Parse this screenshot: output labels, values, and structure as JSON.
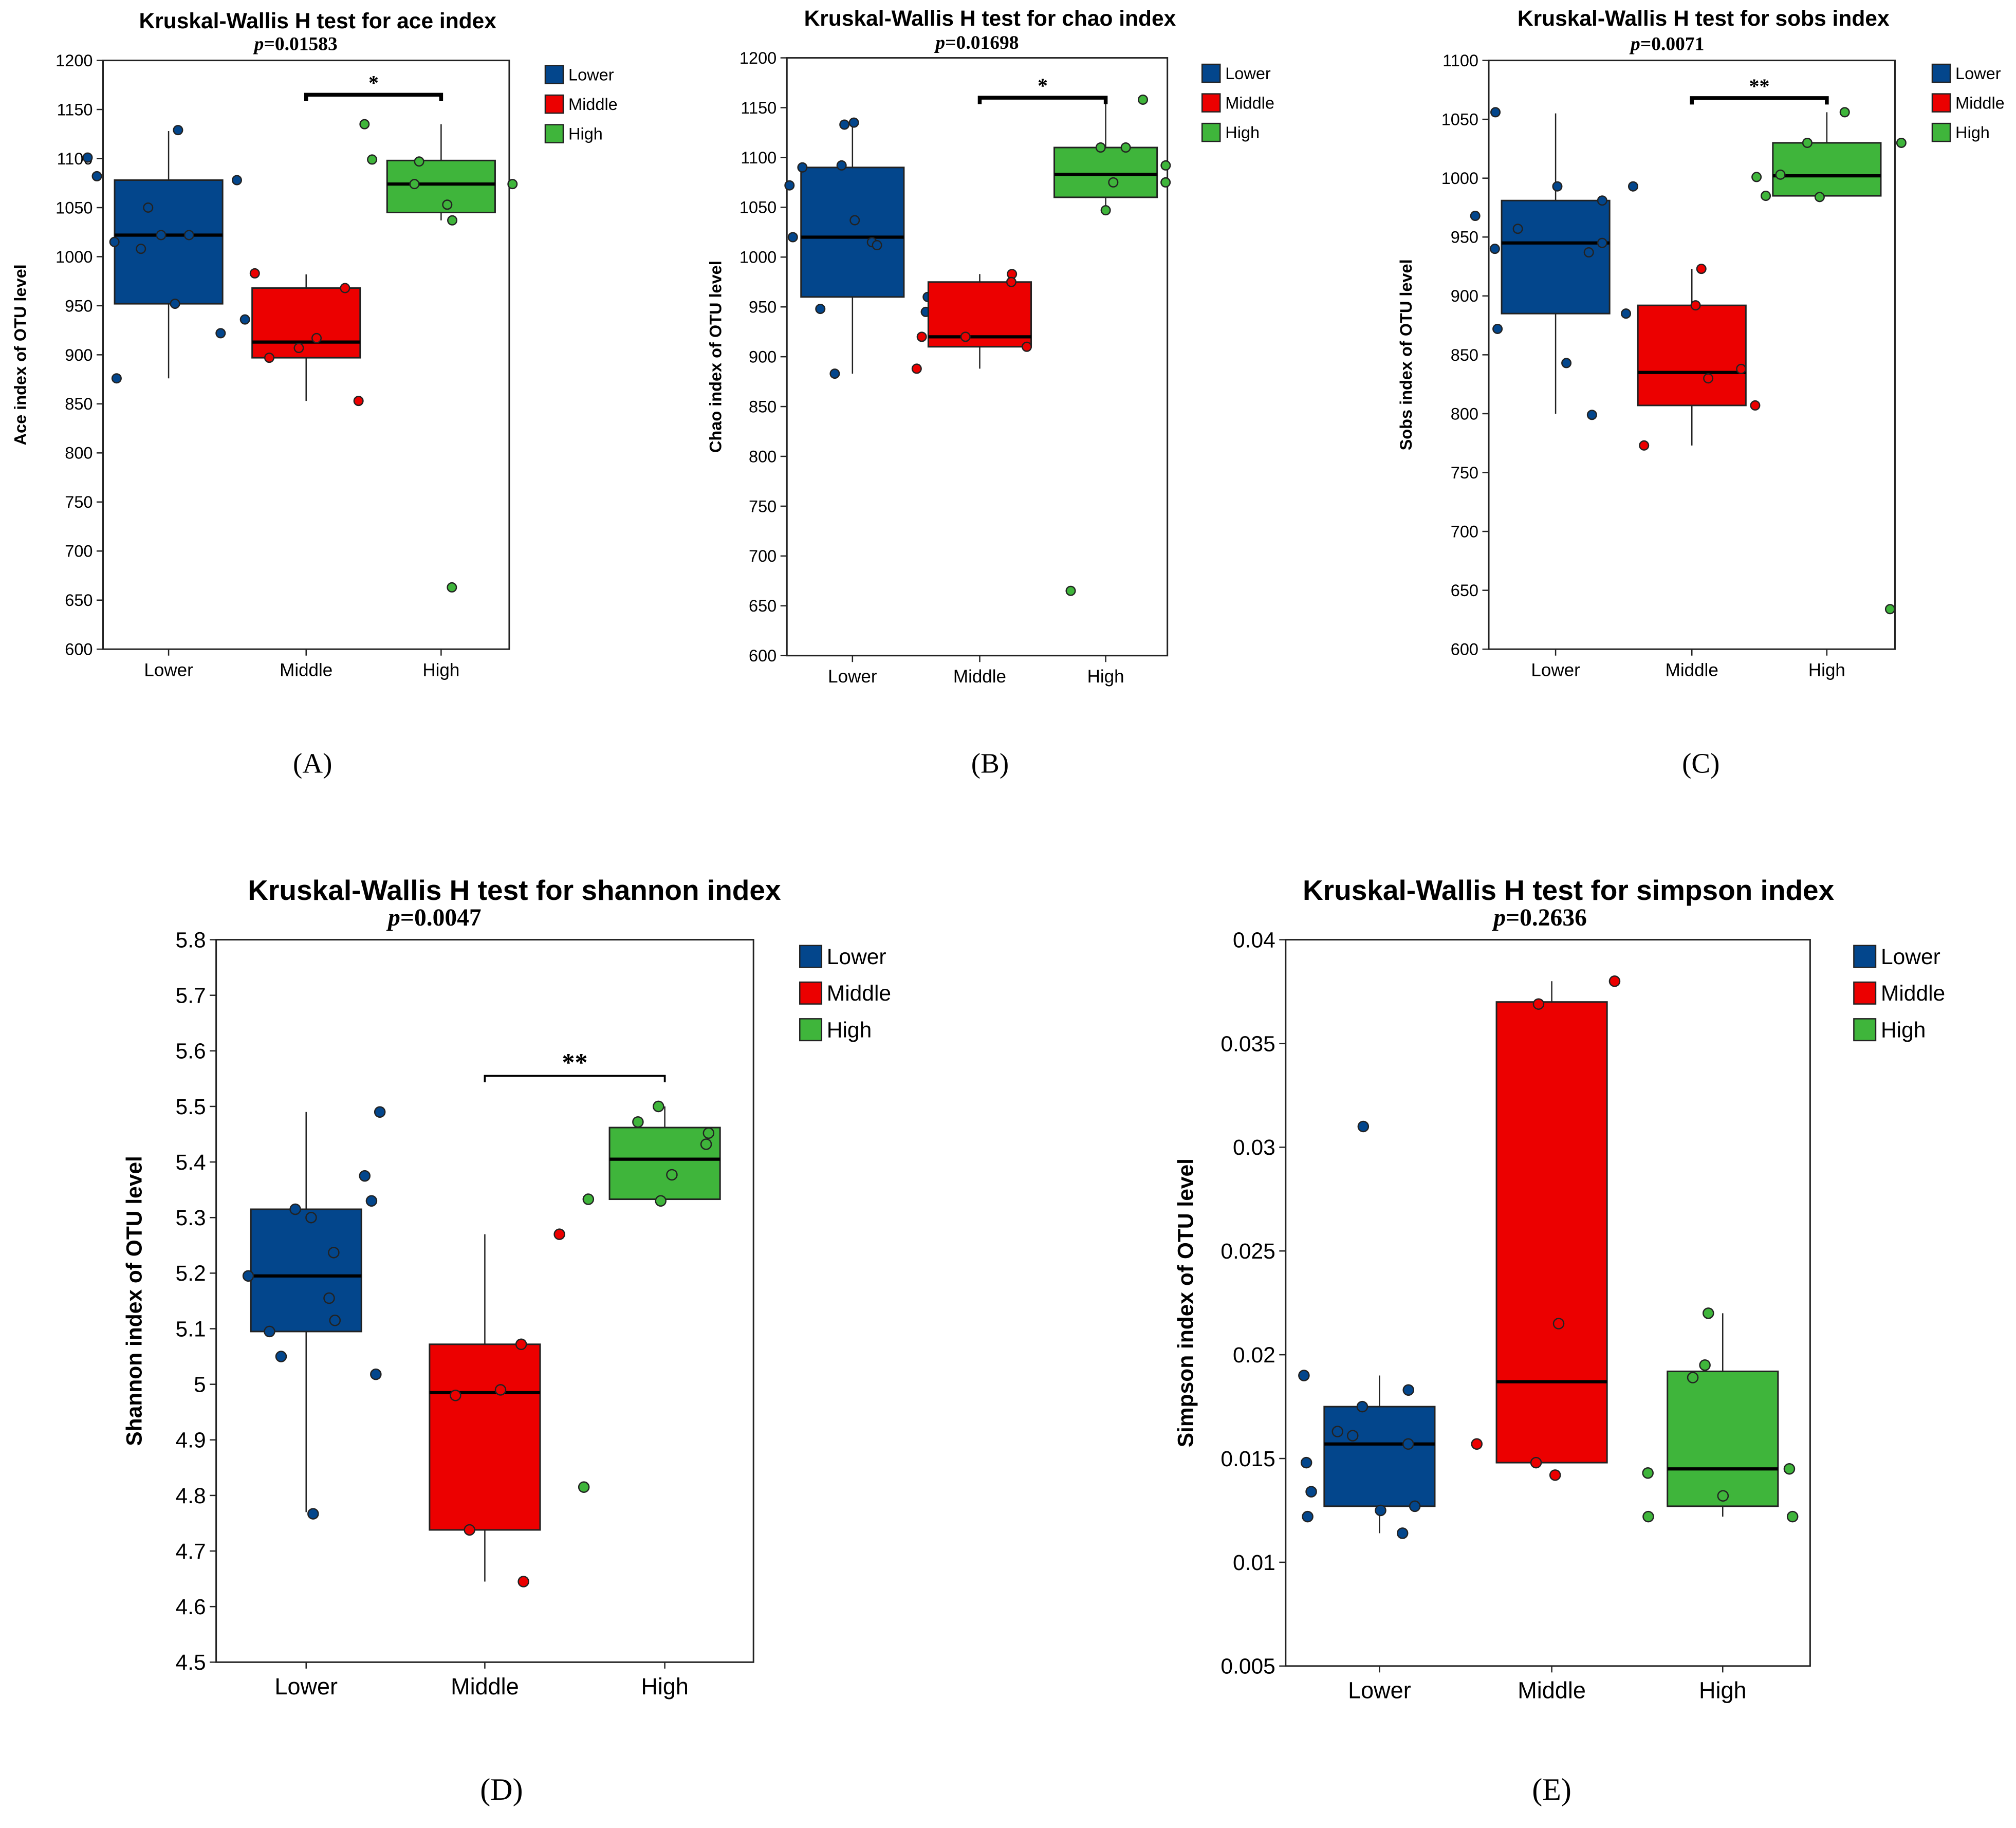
{
  "colors": {
    "Lower": "#03468c",
    "Middle": "#ec0000",
    "High": "#3fb53b"
  },
  "legend": [
    "Lower",
    "Middle",
    "High"
  ],
  "chart_data": [
    {
      "id": "A",
      "type": "box",
      "panel_label": "(A)",
      "title": "Kruskal-Wallis H test for ace index",
      "p_label": "p",
      "p_value": "=0.01583",
      "ylabel": "Ace index of OTU level",
      "ylim": [
        600,
        1200
      ],
      "yticks": [
        600,
        650,
        700,
        750,
        800,
        850,
        900,
        950,
        1000,
        1050,
        1100,
        1150,
        1200
      ],
      "categories": [
        "Lower",
        "Middle",
        "High"
      ],
      "groups": [
        {
          "name": "Lower",
          "q1": 952,
          "median": 1022,
          "q3": 1078,
          "whisker_low": 876,
          "whisker_high": 1128,
          "points": [
            1101,
            1078,
            1082,
            1129,
            1050,
            1022,
            1022,
            1015,
            1008,
            952,
            936,
            922,
            876
          ]
        },
        {
          "name": "Middle",
          "q1": 897,
          "median": 913,
          "q3": 968,
          "whisker_low": 853,
          "whisker_high": 982,
          "points": [
            983,
            968,
            917,
            907,
            897,
            853
          ]
        },
        {
          "name": "High",
          "q1": 1045,
          "median": 1074,
          "q3": 1098,
          "whisker_low": 1037,
          "whisker_high": 1135,
          "points": [
            1135,
            1099,
            1097,
            1074,
            1074,
            1053,
            1037,
            663
          ]
        }
      ],
      "significance": {
        "from": "Middle",
        "to": "High",
        "y": 1165,
        "label": "*"
      }
    },
    {
      "id": "B",
      "type": "box",
      "panel_label": "(B)",
      "title": "Kruskal-Wallis H test for chao index",
      "p_label": "p",
      "p_value": "=0.01698",
      "ylabel": "Chao index of OTU level",
      "ylim": [
        600,
        1200
      ],
      "yticks": [
        600,
        650,
        700,
        750,
        800,
        850,
        900,
        950,
        1000,
        1050,
        1100,
        1150,
        1200
      ],
      "categories": [
        "Lower",
        "Middle",
        "High"
      ],
      "groups": [
        {
          "name": "Lower",
          "q1": 960,
          "median": 1020,
          "q3": 1090,
          "whisker_low": 883,
          "whisker_high": 1135,
          "points": [
            1135,
            1133,
            1092,
            1090,
            1072,
            1037,
            1020,
            1015,
            1012,
            960,
            948,
            945,
            883
          ]
        },
        {
          "name": "Middle",
          "q1": 910,
          "median": 920,
          "q3": 975,
          "whisker_low": 888,
          "whisker_high": 983,
          "points": [
            983,
            975,
            920,
            920,
            910,
            888
          ]
        },
        {
          "name": "High",
          "q1": 1060,
          "median": 1083,
          "q3": 1110,
          "whisker_low": 1047,
          "whisker_high": 1158,
          "points": [
            1158,
            1110,
            1110,
            1092,
            1075,
            1075,
            1047,
            665
          ]
        }
      ],
      "significance": {
        "from": "Middle",
        "to": "High",
        "y": 1160,
        "label": "*"
      }
    },
    {
      "id": "C",
      "type": "box",
      "panel_label": "(C)",
      "title": "Kruskal-Wallis H test for sobs index",
      "p_label": "p",
      "p_value": "=0.0071",
      "ylabel": "Sobs index of OTU level",
      "ylim": [
        600,
        1100
      ],
      "yticks": [
        600,
        650,
        700,
        750,
        800,
        850,
        900,
        950,
        1000,
        1050,
        1100
      ],
      "categories": [
        "Lower",
        "Middle",
        "High"
      ],
      "groups": [
        {
          "name": "Lower",
          "q1": 885,
          "median": 945,
          "q3": 981,
          "whisker_low": 800,
          "whisker_high": 1055,
          "points": [
            1056,
            993,
            993,
            981,
            968,
            957,
            945,
            940,
            937,
            885,
            872,
            843,
            799
          ]
        },
        {
          "name": "Middle",
          "q1": 807,
          "median": 835,
          "q3": 892,
          "whisker_low": 773,
          "whisker_high": 923,
          "points": [
            923,
            892,
            838,
            830,
            807,
            773
          ]
        },
        {
          "name": "High",
          "q1": 985,
          "median": 1002,
          "q3": 1030,
          "whisker_low": 985,
          "whisker_high": 1056,
          "points": [
            1056,
            1030,
            1030,
            1003,
            1001,
            985,
            984,
            634
          ]
        }
      ],
      "significance": {
        "from": "Middle",
        "to": "High",
        "y": 1068,
        "label": "**"
      }
    },
    {
      "id": "D",
      "type": "box",
      "panel_label": "(D)",
      "title": "Kruskal-Wallis H test for shannon index",
      "p_label": "p",
      "p_value": "=0.0047",
      "ylabel": "Shannon index of OTU level",
      "ylim": [
        4.5,
        5.8
      ],
      "yticks": [
        "4.5",
        "4.6",
        "4.7",
        "4.8",
        "4.9",
        "5",
        "5.1",
        "5.2",
        "5.3",
        "5.4",
        "5.5",
        "5.6",
        "5.7",
        "5.8"
      ],
      "categories": [
        "Lower",
        "Middle",
        "High"
      ],
      "groups": [
        {
          "name": "Lower",
          "q1": 5.095,
          "median": 5.195,
          "q3": 5.315,
          "whisker_low": 4.77,
          "whisker_high": 5.49,
          "points": [
            5.49,
            5.375,
            5.33,
            5.315,
            5.3,
            5.237,
            5.195,
            5.155,
            5.115,
            5.095,
            5.05,
            5.018,
            4.767
          ]
        },
        {
          "name": "Middle",
          "q1": 4.738,
          "median": 4.985,
          "q3": 5.072,
          "whisker_low": 4.645,
          "whisker_high": 5.27,
          "points": [
            5.27,
            5.072,
            4.99,
            4.98,
            4.738,
            4.645
          ]
        },
        {
          "name": "High",
          "q1": 5.333,
          "median": 5.405,
          "q3": 5.462,
          "whisker_low": 5.333,
          "whisker_high": 5.5,
          "points": [
            5.5,
            5.472,
            5.452,
            5.432,
            5.377,
            5.333,
            5.33,
            4.815
          ]
        }
      ],
      "significance": {
        "from": "Middle",
        "to": "High",
        "y": 5.555,
        "label": "**"
      }
    },
    {
      "id": "E",
      "type": "box",
      "panel_label": "(E)",
      "title": "Kruskal-Wallis H test for simpson index",
      "p_label": "p",
      "p_value": "=0.2636",
      "ylabel": "Simpson index of OTU level",
      "ylim": [
        0.005,
        0.04
      ],
      "yticks": [
        "0.005",
        "0.01",
        "0.015",
        "0.02",
        "0.025",
        "0.03",
        "0.035",
        "0.04"
      ],
      "categories": [
        "Lower",
        "Middle",
        "High"
      ],
      "groups": [
        {
          "name": "Lower",
          "q1": 0.0127,
          "median": 0.0157,
          "q3": 0.0175,
          "whisker_low": 0.0114,
          "whisker_high": 0.019,
          "points": [
            0.031,
            0.019,
            0.0183,
            0.0175,
            0.0163,
            0.0161,
            0.0157,
            0.0148,
            0.0134,
            0.0127,
            0.0125,
            0.0122,
            0.0114
          ]
        },
        {
          "name": "Middle",
          "q1": 0.0148,
          "median": 0.0187,
          "q3": 0.037,
          "whisker_low": 0.0148,
          "whisker_high": 0.038,
          "points": [
            0.038,
            0.0369,
            0.0215,
            0.0157,
            0.0148,
            0.0142
          ]
        },
        {
          "name": "High",
          "q1": 0.0127,
          "median": 0.0145,
          "q3": 0.0192,
          "whisker_low": 0.0122,
          "whisker_high": 0.022,
          "points": [
            0.022,
            0.0195,
            0.0189,
            0.0145,
            0.0143,
            0.0132,
            0.0122,
            0.0122
          ]
        }
      ],
      "significance": null
    }
  ]
}
